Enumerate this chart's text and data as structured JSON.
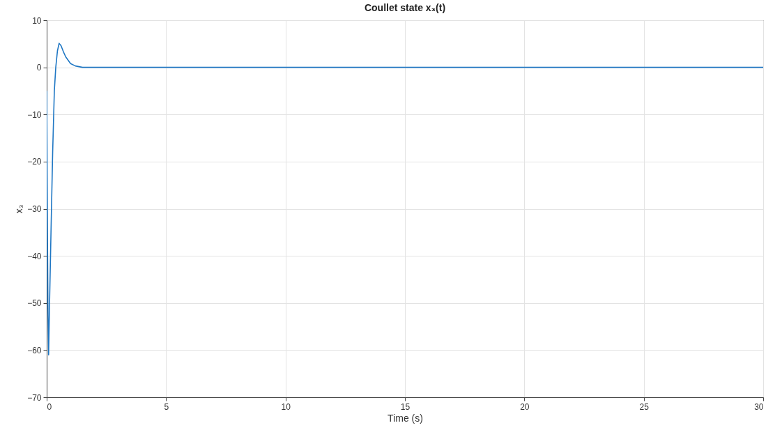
{
  "chart_data": {
    "type": "line",
    "title": "Coullet state x₃(t)",
    "xlabel": "Time (s)",
    "ylabel": "x₃",
    "x": [
      0,
      0.02,
      0.05,
      0.08,
      0.12,
      0.18,
      0.25,
      0.32,
      0.38,
      0.45,
      0.52,
      0.6,
      0.7,
      0.8,
      1.0,
      1.2,
      1.5,
      2,
      5,
      10,
      15,
      20,
      25,
      30
    ],
    "series": [
      {
        "color": "#1f77c4",
        "values": [
          -5,
          -25,
          -50,
          -61,
          -50,
          -35,
          -18,
          -5,
          0,
          3.5,
          5.1,
          4.6,
          3.3,
          2.2,
          0.8,
          0.3,
          0,
          0,
          0,
          0,
          0,
          0,
          0,
          0
        ]
      }
    ],
    "xlim": [
      0,
      30
    ],
    "xticks": [
      0,
      5,
      10,
      15,
      20,
      25,
      30
    ],
    "ylim": [
      -70,
      10
    ],
    "yticks": [
      -70,
      -60,
      -50,
      -40,
      -30,
      -20,
      -10,
      0,
      10
    ],
    "grid": true
  }
}
